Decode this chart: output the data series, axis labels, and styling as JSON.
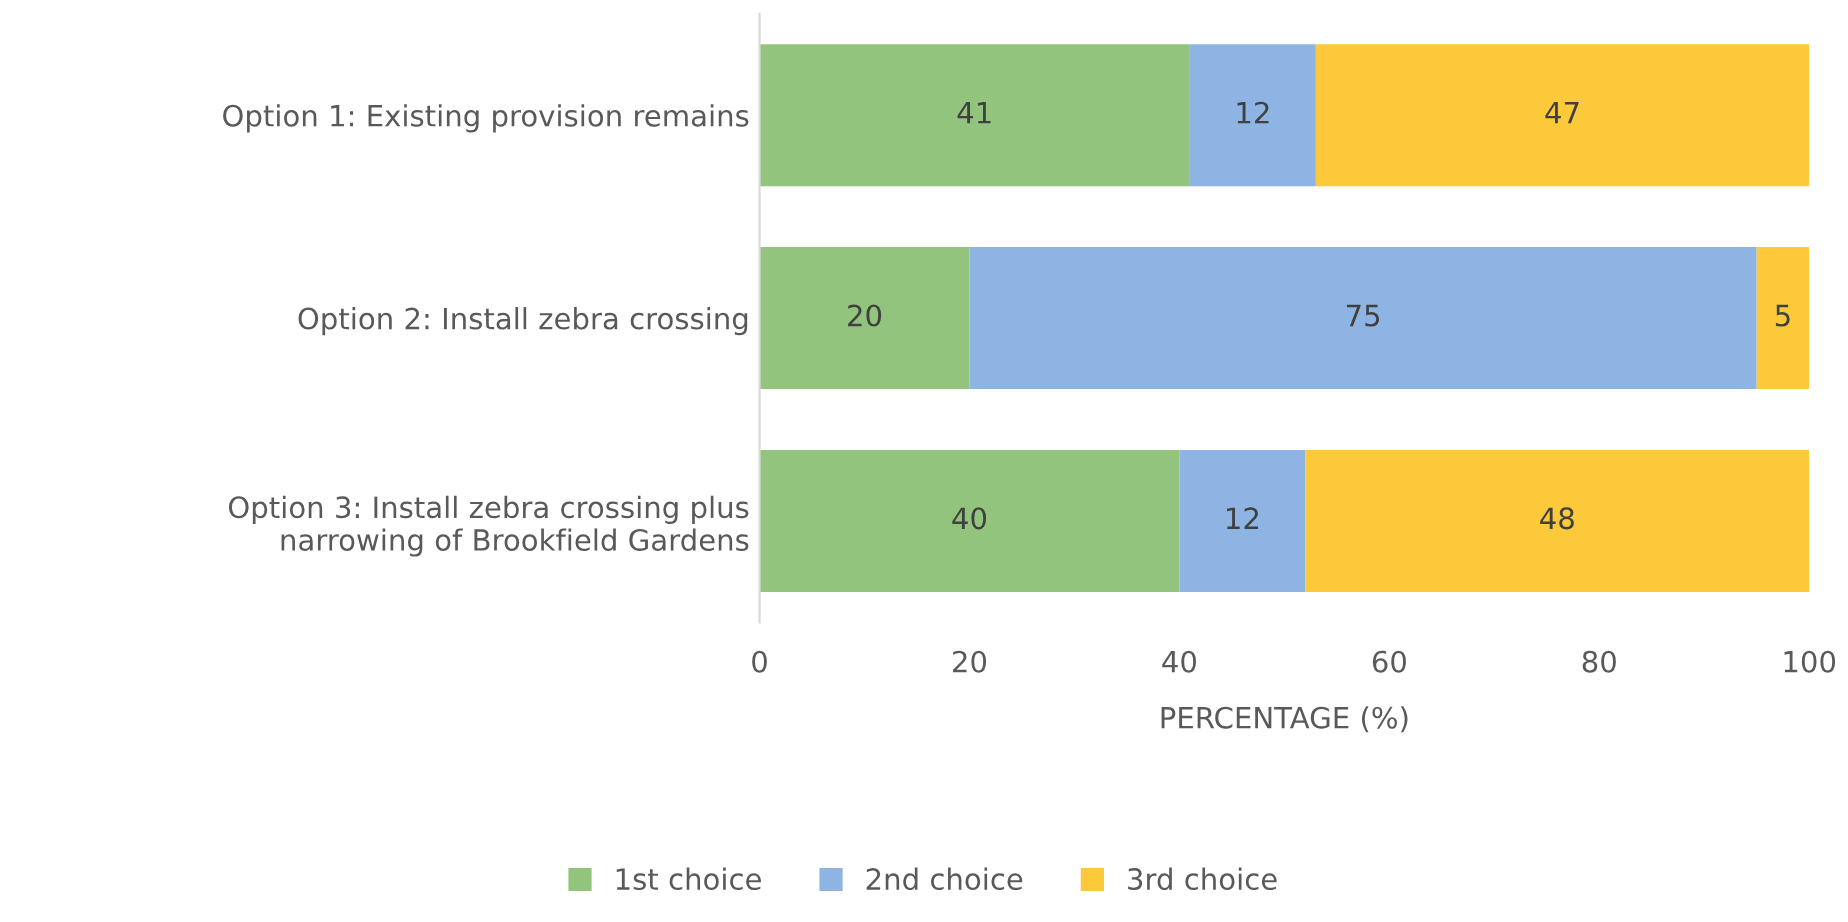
{
  "chart_data": {
    "type": "bar",
    "orientation": "horizontal",
    "stacked": true,
    "categories": [
      "Option 1: Existing provision remains",
      "Option 2: Install zebra crossing",
      "Option 3: Install zebra crossing plus\nnarrowing of Brookfield Gardens"
    ],
    "series": [
      {
        "name": "1st choice",
        "color": "#93c47d",
        "values": [
          41,
          20,
          40
        ]
      },
      {
        "name": "2nd choice",
        "color": "#8db4e2",
        "values": [
          12,
          75,
          12
        ]
      },
      {
        "name": "3rd choice",
        "color": "#fcc93a",
        "values": [
          47,
          5,
          48
        ]
      }
    ],
    "xlabel": "PERCENTAGE (%)",
    "xlim": [
      0,
      100
    ],
    "xticks": [
      0,
      20,
      40,
      60,
      80,
      100
    ],
    "data_labels": true,
    "legend": "bottom",
    "grid": false
  }
}
